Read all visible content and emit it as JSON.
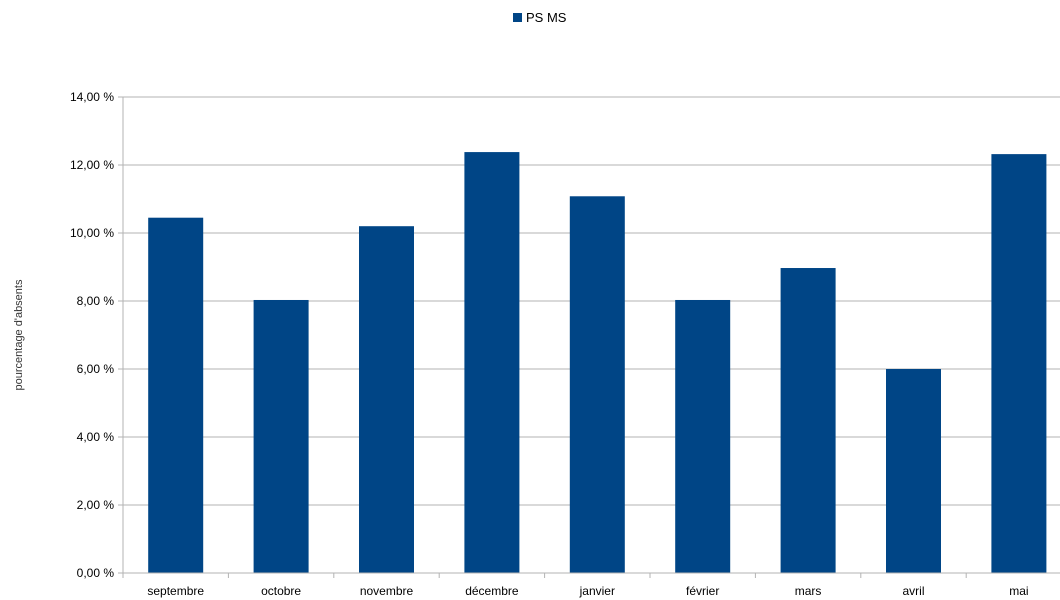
{
  "chart_data": {
    "type": "bar",
    "categories": [
      "septembre",
      "octobre",
      "novembre",
      "décembre",
      "janvier",
      "février",
      "mars",
      "avril",
      "mai"
    ],
    "series": [
      {
        "name": "PS MS",
        "values": [
          10.45,
          8.03,
          10.2,
          12.38,
          11.08,
          8.03,
          8.97,
          6.0,
          12.32
        ],
        "color": "#004586"
      }
    ],
    "ylabel": "pourcentage d'absents",
    "ylim": [
      0,
      14
    ],
    "yticks": [
      0,
      2,
      4,
      6,
      8,
      10,
      12,
      14
    ],
    "ytick_labels": [
      "0,00 %",
      "2,00 %",
      "4,00 %",
      "6,00 %",
      "8,00 %",
      "10,00 %",
      "12,00 %",
      "14,00 %"
    ],
    "grid": true,
    "legend_position": "top-center"
  }
}
